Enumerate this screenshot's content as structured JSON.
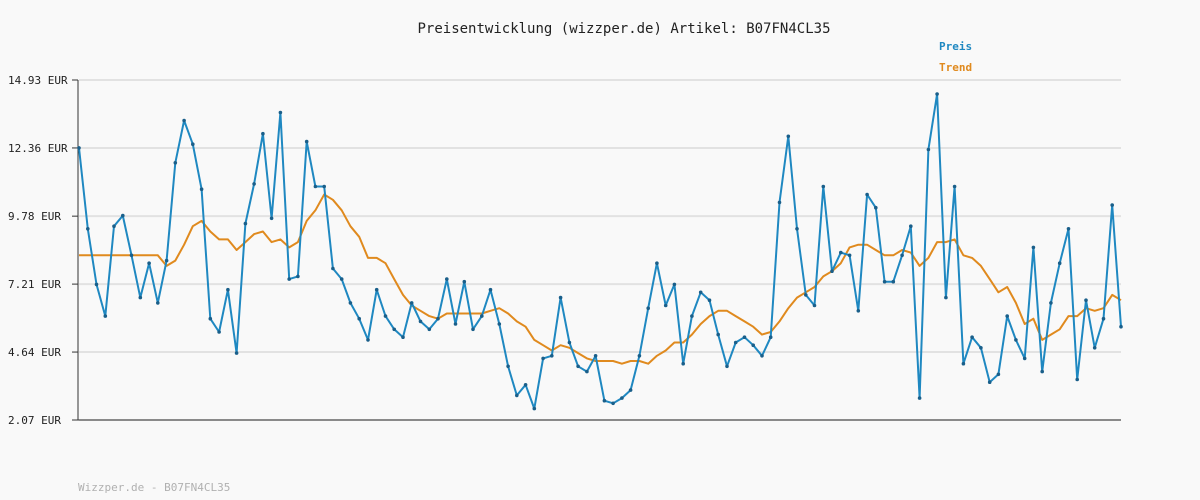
{
  "chart_data": {
    "type": "line",
    "title": "Preisentwicklung (wizzper.de) Artikel: B07FN4CL35",
    "yticks": [
      "14.93 EUR",
      "12.36 EUR",
      "9.78 EUR",
      "7.21 EUR",
      "4.64 EUR",
      "2.07 EUR"
    ],
    "ytick_values": [
      14.93,
      12.36,
      9.78,
      7.21,
      4.64,
      2.07
    ],
    "ylim": [
      2.07,
      14.93
    ],
    "grid": true,
    "legend_position": "top-right",
    "series": [
      {
        "name": "Preis",
        "color": "#1f88c1",
        "values": [
          12.36,
          9.3,
          7.2,
          6.0,
          9.4,
          9.8,
          8.3,
          6.7,
          8.0,
          6.5,
          8.1,
          11.8,
          13.4,
          12.5,
          10.8,
          5.9,
          5.4,
          7.0,
          4.6,
          9.5,
          11.0,
          12.9,
          9.7,
          13.7,
          7.4,
          7.5,
          12.6,
          10.9,
          10.9,
          7.8,
          7.4,
          6.5,
          5.9,
          5.1,
          7.0,
          6.0,
          5.5,
          5.2,
          6.5,
          5.8,
          5.5,
          5.9,
          7.4,
          5.7,
          7.3,
          5.5,
          6.0,
          7.0,
          5.7,
          4.1,
          3.0,
          3.4,
          2.5,
          4.4,
          4.5,
          6.7,
          5.0,
          4.1,
          3.9,
          4.5,
          2.8,
          2.7,
          2.9,
          3.2,
          4.5,
          6.3,
          8.0,
          6.4,
          7.2,
          4.2,
          6.0,
          6.9,
          6.6,
          5.3,
          4.1,
          5.0,
          5.2,
          4.9,
          4.5,
          5.2,
          10.3,
          12.8,
          9.3,
          6.8,
          6.4,
          10.9,
          7.7,
          8.4,
          8.3,
          6.2,
          10.6,
          10.1,
          7.3,
          7.3,
          8.3,
          9.4,
          2.9,
          12.3,
          14.4,
          6.7,
          10.9,
          4.2,
          5.2,
          4.8,
          3.5,
          3.8,
          6.0,
          5.1,
          4.4,
          8.6,
          3.9,
          6.5,
          8.0,
          9.3,
          3.6,
          6.6,
          4.8,
          5.9,
          10.2,
          5.6
        ]
      },
      {
        "name": "Trend",
        "color": "#e08a1e",
        "values": [
          8.3,
          8.3,
          8.3,
          8.3,
          8.3,
          8.3,
          8.3,
          8.3,
          8.3,
          8.3,
          7.9,
          8.1,
          8.7,
          9.4,
          9.6,
          9.2,
          8.9,
          8.9,
          8.5,
          8.8,
          9.1,
          9.2,
          8.8,
          8.9,
          8.6,
          8.8,
          9.6,
          10.0,
          10.6,
          10.4,
          10.0,
          9.4,
          9.0,
          8.2,
          8.2,
          8.0,
          7.4,
          6.8,
          6.4,
          6.2,
          6.0,
          5.9,
          6.1,
          6.1,
          6.1,
          6.1,
          6.1,
          6.2,
          6.3,
          6.1,
          5.8,
          5.6,
          5.1,
          4.9,
          4.7,
          4.9,
          4.8,
          4.6,
          4.4,
          4.3,
          4.3,
          4.3,
          4.2,
          4.3,
          4.3,
          4.2,
          4.5,
          4.7,
          5.0,
          5.0,
          5.3,
          5.7,
          6.0,
          6.2,
          6.2,
          6.0,
          5.8,
          5.6,
          5.3,
          5.4,
          5.8,
          6.3,
          6.7,
          6.9,
          7.1,
          7.5,
          7.7,
          8.0,
          8.6,
          8.7,
          8.7,
          8.5,
          8.3,
          8.3,
          8.5,
          8.4,
          7.9,
          8.2,
          8.8,
          8.8,
          8.9,
          8.3,
          8.2,
          7.9,
          7.4,
          6.9,
          7.1,
          6.5,
          5.7,
          5.9,
          5.1,
          5.3,
          5.5,
          6.0,
          6.0,
          6.3,
          6.2,
          6.3,
          6.8,
          6.6
        ]
      }
    ]
  },
  "footer": "Wizzper.de - B07FN4CL35"
}
